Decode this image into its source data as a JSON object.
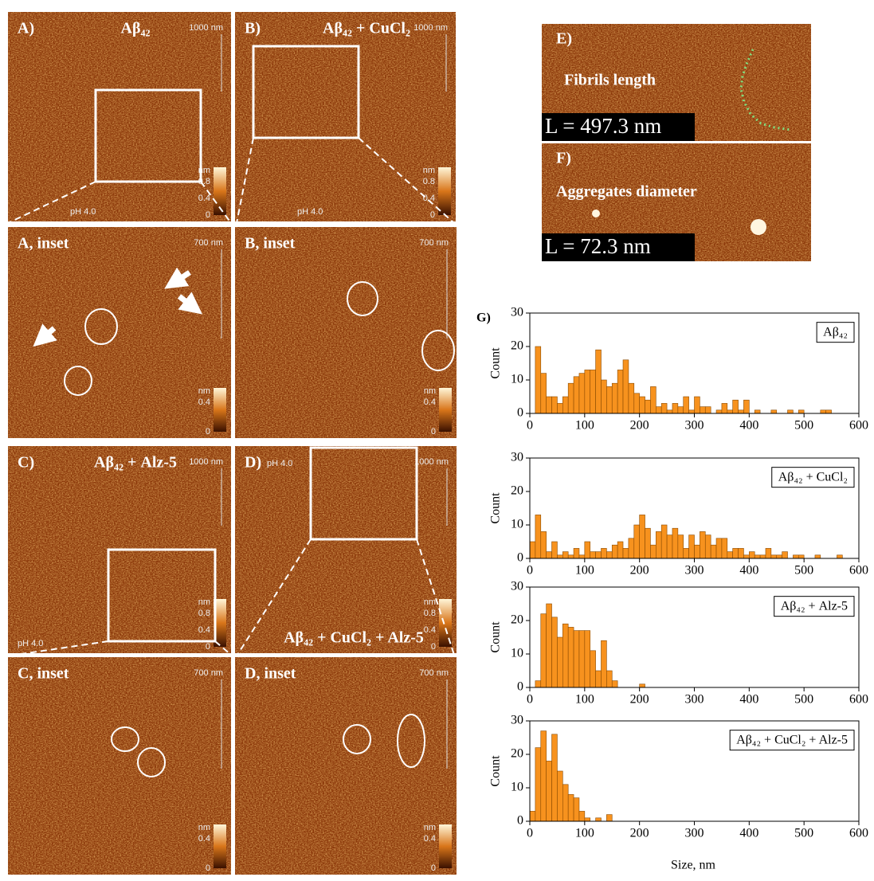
{
  "figure": {
    "g_label": "G)",
    "xlabel": "Size, nm"
  },
  "panels": [
    {
      "label": "A)",
      "title": "Aβ₄₂",
      "scale": "1000 nm",
      "ph": "pH 4.0",
      "cb_unit": "nm",
      "cb_ticks": [
        "0.8",
        "0.4",
        "0"
      ]
    },
    {
      "label": "B)",
      "title": "Aβ₄₂ + CuCl₂",
      "scale": "1000 nm",
      "ph": "pH 4.0",
      "cb_unit": "nm",
      "cb_ticks": [
        "0.8",
        "0.4",
        "0"
      ]
    },
    {
      "label": "A, inset",
      "scale": "700 nm",
      "cb_unit": "nm",
      "cb_ticks": [
        "0.4",
        "0"
      ]
    },
    {
      "label": "B, inset",
      "scale": "700 nm",
      "cb_unit": "nm",
      "cb_ticks": [
        "0.4",
        "0"
      ]
    },
    {
      "label": "C)",
      "title": "Aβ₄₂ + Alz-5",
      "scale": "1000 nm",
      "ph": "pH 4.0",
      "cb_unit": "nm",
      "cb_ticks": [
        "0.8",
        "0.4",
        "0"
      ]
    },
    {
      "label": "D)",
      "title": "Aβ₄₂ + CuCl₂ + Alz-5",
      "scale": "1000 nm",
      "ph": "pH 4.0",
      "cb_unit": "nm",
      "cb_ticks": [
        "0.8",
        "0.4",
        "0"
      ]
    },
    {
      "label": "C, inset",
      "scale": "700 nm",
      "cb_unit": "nm",
      "cb_ticks": [
        "0.4",
        "0"
      ]
    },
    {
      "label": "D, inset",
      "scale": "700 nm",
      "cb_unit": "nm",
      "cb_ticks": [
        "0.4",
        "0"
      ]
    }
  ],
  "measures": [
    {
      "label": "E)",
      "title": "Fibrils length",
      "result": "L = 497.3 nm"
    },
    {
      "label": "F)",
      "title": "Aggregates diameter",
      "result": "L = 72.3 nm"
    }
  ],
  "chart_data": [
    {
      "type": "histogram",
      "ylabel": "Count",
      "xlim": [
        0,
        600
      ],
      "xticks": [
        0,
        100,
        200,
        300,
        400,
        500,
        600
      ],
      "ylim": [
        0,
        30
      ],
      "yticks": [
        0,
        10,
        20,
        30
      ],
      "bins": [
        10,
        20,
        30,
        40,
        50,
        60,
        70,
        80,
        90,
        100,
        110,
        120,
        130,
        140,
        150,
        160,
        170,
        180,
        190,
        200,
        210,
        220,
        230,
        240,
        250,
        260,
        270,
        280,
        290,
        300,
        310,
        320,
        330,
        340,
        350,
        360,
        370,
        380,
        390,
        400,
        410,
        420,
        430,
        440,
        450,
        460,
        470,
        480,
        490,
        500,
        510,
        520,
        530,
        540,
        550
      ],
      "series": [
        {
          "name": "Aβ₄₂",
          "color": "#f7921e",
          "values": [
            20,
            12,
            5,
            5,
            3,
            5,
            9,
            11,
            12,
            13,
            13,
            19,
            10,
            8,
            9,
            13,
            16,
            9,
            6,
            5,
            4,
            8,
            2,
            3,
            1,
            3,
            2,
            5,
            1,
            5,
            2,
            2,
            0,
            1,
            3,
            1,
            4,
            1,
            4,
            0,
            1,
            0,
            0,
            1,
            0,
            0,
            1,
            0,
            1,
            0,
            0,
            0,
            1,
            1
          ]
        }
      ]
    },
    {
      "type": "histogram",
      "ylabel": "Count",
      "xlim": [
        0,
        600
      ],
      "xticks": [
        0,
        100,
        200,
        300,
        400,
        500,
        600
      ],
      "ylim": [
        0,
        30
      ],
      "yticks": [
        0,
        10,
        20,
        30
      ],
      "bins": [
        0,
        10,
        20,
        30,
        40,
        50,
        60,
        70,
        80,
        90,
        100,
        110,
        120,
        130,
        140,
        150,
        160,
        170,
        180,
        190,
        200,
        210,
        220,
        230,
        240,
        250,
        260,
        270,
        280,
        290,
        300,
        310,
        320,
        330,
        340,
        350,
        360,
        370,
        380,
        390,
        400,
        410,
        420,
        430,
        440,
        450,
        460,
        470,
        480,
        490,
        500,
        510,
        520,
        530,
        540,
        550,
        560,
        570
      ],
      "series": [
        {
          "name": "Aβ₄₂ + CuCl₂",
          "color": "#f7921e",
          "values": [
            5,
            13,
            8,
            2,
            5,
            1,
            2,
            1,
            3,
            1,
            5,
            2,
            2,
            3,
            2,
            4,
            5,
            3,
            6,
            10,
            13,
            9,
            4,
            8,
            10,
            7,
            9,
            7,
            3,
            7,
            4,
            8,
            7,
            4,
            6,
            6,
            2,
            3,
            3,
            1,
            2,
            1,
            1,
            3,
            1,
            1,
            2,
            0,
            1,
            1,
            0,
            0,
            1,
            0,
            0,
            0,
            1
          ]
        }
      ]
    },
    {
      "type": "histogram",
      "ylabel": "Count",
      "xlim": [
        0,
        600
      ],
      "xticks": [
        0,
        100,
        200,
        300,
        400,
        500,
        600
      ],
      "ylim": [
        0,
        30
      ],
      "yticks": [
        0,
        10,
        20,
        30
      ],
      "bins": [
        10,
        20,
        30,
        40,
        50,
        60,
        70,
        80,
        90,
        100,
        110,
        120,
        130,
        140,
        150,
        160,
        170,
        180,
        190,
        200,
        210
      ],
      "series": [
        {
          "name": "Aβ₄₂ + Alz-5",
          "color": "#f7921e",
          "values": [
            2,
            22,
            25,
            21,
            15,
            19,
            18,
            17,
            17,
            17,
            11,
            5,
            14,
            5,
            2,
            0,
            0,
            0,
            0,
            1
          ]
        }
      ]
    },
    {
      "type": "histogram",
      "ylabel": "Count",
      "xlim": [
        0,
        600
      ],
      "xticks": [
        0,
        100,
        200,
        300,
        400,
        500,
        600
      ],
      "ylim": [
        0,
        30
      ],
      "yticks": [
        0,
        10,
        20,
        30
      ],
      "bins": [
        0,
        10,
        20,
        30,
        40,
        50,
        60,
        70,
        80,
        90,
        100,
        110,
        120,
        130,
        140,
        150
      ],
      "series": [
        {
          "name": "Aβ₄₂ + CuCl₂ + Alz-5",
          "color": "#f7921e",
          "values": [
            3,
            22,
            27,
            18,
            26,
            15,
            11,
            8,
            7,
            3,
            1,
            0,
            1,
            0,
            2
          ]
        }
      ]
    }
  ]
}
